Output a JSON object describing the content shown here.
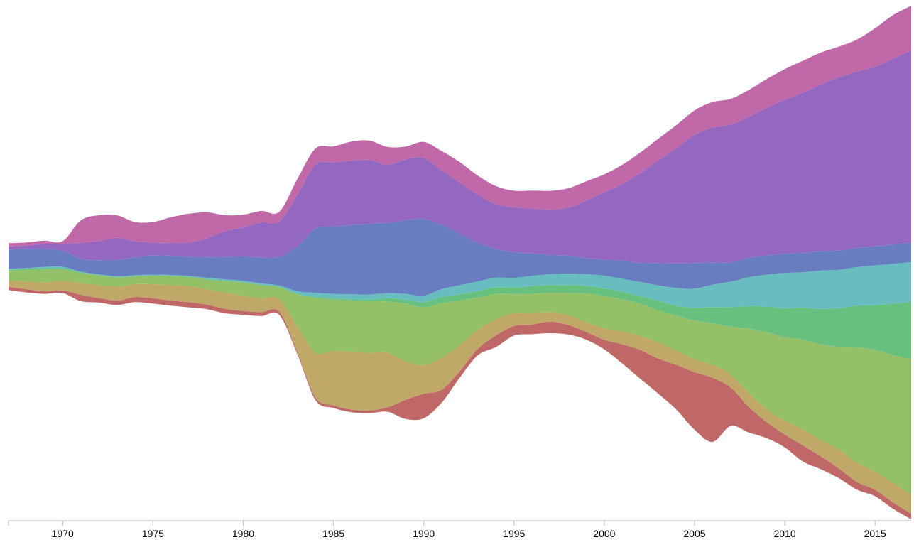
{
  "chart_data": {
    "type": "area",
    "offset": "wiggle",
    "curve": "smooth",
    "x": [
      1967,
      1968,
      1969,
      1970,
      1971,
      1972,
      1973,
      1974,
      1975,
      1976,
      1977,
      1978,
      1979,
      1980,
      1981,
      1982,
      1983,
      1984,
      1985,
      1986,
      1987,
      1988,
      1989,
      1990,
      1991,
      1992,
      1993,
      1994,
      1995,
      1996,
      1997,
      1998,
      1999,
      2000,
      2001,
      2002,
      2003,
      2004,
      2005,
      2006,
      2007,
      2008,
      2009,
      2010,
      2011,
      2012,
      2013,
      2014,
      2015,
      2016,
      2017
    ],
    "xlim": [
      1967,
      2017
    ],
    "x_ticks": [
      "1970",
      "1975",
      "1980",
      "1985",
      "1990",
      "1995",
      "2000",
      "2005",
      "2010",
      "2015"
    ],
    "grid": false,
    "legend": "none",
    "series": [
      {
        "color": "#c06868",
        "values": [
          5,
          5,
          4,
          4,
          10,
          7,
          7,
          8,
          8,
          8,
          8,
          7,
          7,
          6,
          6,
          5,
          3,
          4,
          4,
          4,
          4,
          7,
          30,
          38,
          20,
          10,
          10,
          18,
          15,
          15,
          18,
          15,
          12,
          15,
          30,
          45,
          55,
          70,
          90,
          100,
          60,
          40,
          25,
          20,
          25,
          20,
          15,
          12,
          10,
          10,
          9
        ]
      },
      {
        "color": "#c0a868",
        "values": [
          10,
          12,
          14,
          15,
          18,
          20,
          22,
          20,
          22,
          24,
          25,
          24,
          25,
          24,
          22,
          20,
          40,
          70,
          85,
          90,
          90,
          85,
          60,
          45,
          50,
          40,
          30,
          25,
          20,
          18,
          15,
          15,
          15,
          18,
          20,
          22,
          25,
          22,
          20,
          20,
          20,
          22,
          20,
          22,
          25,
          25,
          30,
          30,
          28,
          30,
          30
        ]
      },
      {
        "color": "#94c068",
        "values": [
          15,
          18,
          20,
          18,
          16,
          15,
          14,
          12,
          13,
          14,
          14,
          15,
          18,
          20,
          20,
          18,
          50,
          85,
          80,
          80,
          80,
          80,
          90,
          90,
          85,
          70,
          50,
          40,
          30,
          30,
          30,
          35,
          45,
          50,
          50,
          50,
          50,
          55,
          60,
          65,
          75,
          100,
          120,
          130,
          140,
          150,
          160,
          180,
          190,
          200,
          210
        ]
      },
      {
        "color": "#68c07f",
        "values": [
          2,
          2,
          2,
          2,
          1,
          1,
          1,
          1,
          1,
          1,
          1,
          1,
          1,
          1,
          1,
          1,
          1,
          2,
          2,
          2,
          3,
          5,
          6,
          8,
          10,
          10,
          10,
          10,
          10,
          12,
          12,
          12,
          12,
          12,
          12,
          12,
          15,
          15,
          20,
          25,
          30,
          35,
          40,
          45,
          50,
          55,
          60,
          65,
          70,
          80,
          90
        ]
      },
      {
        "color": "#68bdc0",
        "values": [
          1,
          1,
          2,
          2,
          1,
          1,
          1,
          1,
          1,
          1,
          1,
          2,
          2,
          2,
          2,
          2,
          4,
          6,
          7,
          8,
          8,
          8,
          9,
          10,
          12,
          14,
          15,
          15,
          15,
          16,
          17,
          18,
          18,
          20,
          20,
          22,
          24,
          28,
          30,
          35,
          40,
          45,
          50,
          55,
          55,
          60,
          60,
          60,
          62,
          62,
          62
        ]
      },
      {
        "color": "#687dc0",
        "values": [
          30,
          30,
          28,
          25,
          20,
          22,
          25,
          28,
          30,
          30,
          30,
          32,
          35,
          38,
          40,
          45,
          70,
          100,
          105,
          108,
          110,
          110,
          115,
          120,
          100,
          80,
          60,
          45,
          40,
          35,
          30,
          28,
          25,
          25,
          28,
          30,
          35,
          38,
          40,
          35,
          30,
          30,
          30,
          30,
          30,
          30,
          30,
          30,
          30,
          30,
          30
        ]
      },
      {
        "color": "#9468c0",
        "values": [
          5,
          5,
          8,
          10,
          25,
          30,
          35,
          25,
          20,
          20,
          22,
          30,
          40,
          45,
          55,
          55,
          80,
          100,
          100,
          100,
          100,
          90,
          95,
          95,
          85,
          80,
          75,
          70,
          70,
          70,
          70,
          75,
          90,
          105,
          120,
          140,
          160,
          180,
          200,
          210,
          215,
          220,
          230,
          240,
          250,
          260,
          270,
          275,
          280,
          290,
          300
        ]
      },
      {
        "color": "#c068a8",
        "values": [
          5,
          5,
          5,
          5,
          35,
          40,
          35,
          30,
          32,
          40,
          45,
          40,
          25,
          20,
          18,
          15,
          25,
          25,
          25,
          30,
          30,
          28,
          20,
          25,
          30,
          32,
          30,
          28,
          26,
          28,
          30,
          30,
          30,
          28,
          30,
          32,
          34,
          36,
          38,
          40,
          40,
          42,
          45,
          48,
          50,
          50,
          48,
          50,
          60,
          68,
          70
        ]
      }
    ]
  }
}
